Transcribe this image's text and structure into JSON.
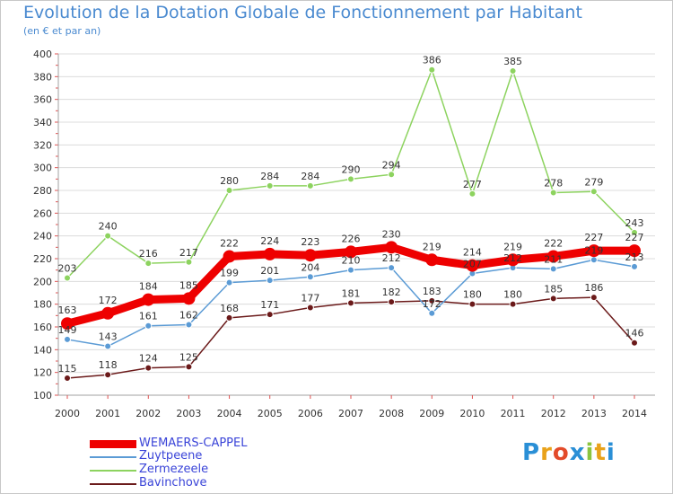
{
  "title": "Evolution de la Dotation Globale de Fonctionnement par Habitant",
  "subtitle": "(en € et par an)",
  "logo": {
    "text": "Proxiti",
    "letters": [
      "P",
      "r",
      "o",
      "x",
      "i",
      "t",
      "i"
    ],
    "colors": [
      "#2a8fd6",
      "#e9a21a",
      "#e34b2a",
      "#2a8fd6",
      "#8bc53f",
      "#e9a21a",
      "#2a8fd6"
    ]
  },
  "chart_data": {
    "type": "line",
    "title": "Evolution de la Dotation Globale de Fonctionnement par Habitant",
    "subtitle": "(en € et par an)",
    "x": [
      "2000",
      "2001",
      "2002",
      "2003",
      "2004",
      "2005",
      "2006",
      "2007",
      "2008",
      "2009",
      "2010",
      "2011",
      "2012",
      "2013",
      "2014"
    ],
    "ylim": [
      100,
      400
    ],
    "yticks": [
      100,
      120,
      140,
      160,
      180,
      200,
      220,
      240,
      260,
      280,
      300,
      320,
      340,
      360,
      380,
      400
    ],
    "grid": "horizontal",
    "legend_position": "bottom-left",
    "series": [
      {
        "name": "WEMAERS-CAPPEL",
        "color": "#ee0000",
        "values": [
          163,
          172,
          184,
          185,
          222,
          224,
          223,
          226,
          230,
          219,
          214,
          219,
          222,
          227,
          227
        ],
        "labels": [
          "163",
          "172",
          "184",
          "185",
          "222",
          "224",
          "223",
          "226",
          "230",
          "219",
          "214",
          "219",
          "222",
          "227",
          "227"
        ]
      },
      {
        "name": "Zuytpeene",
        "color": "#5b9bd5",
        "values": [
          149,
          143,
          161,
          162,
          199,
          201,
          204,
          210,
          212,
          172,
          207,
          212,
          211,
          219,
          213
        ],
        "labels": [
          "149",
          "143",
          "161",
          "162",
          "199",
          "201",
          "204",
          "210",
          "212",
          "172",
          "207",
          "212",
          "211",
          "219",
          "213"
        ]
      },
      {
        "name": "Zermezeele",
        "color": "#8dd35f",
        "values": [
          203,
          240,
          216,
          217,
          280,
          284,
          284,
          290,
          294,
          386,
          277,
          385,
          278,
          279,
          243
        ],
        "labels": [
          "203",
          "240",
          "216",
          "217",
          "280",
          "284",
          "284",
          "290",
          "294",
          "386",
          "277",
          "385",
          "278",
          "279",
          "243"
        ]
      },
      {
        "name": "Bavinchove",
        "color": "#6b1a1a",
        "values": [
          115,
          118,
          124,
          125,
          168,
          171,
          177,
          181,
          182,
          183,
          180,
          180,
          185,
          186,
          146
        ],
        "labels": [
          "115",
          "118",
          "124",
          "125",
          "168",
          "171",
          "177",
          "181",
          "182",
          "183",
          "180",
          "180",
          "185",
          "186",
          "146"
        ]
      }
    ]
  }
}
